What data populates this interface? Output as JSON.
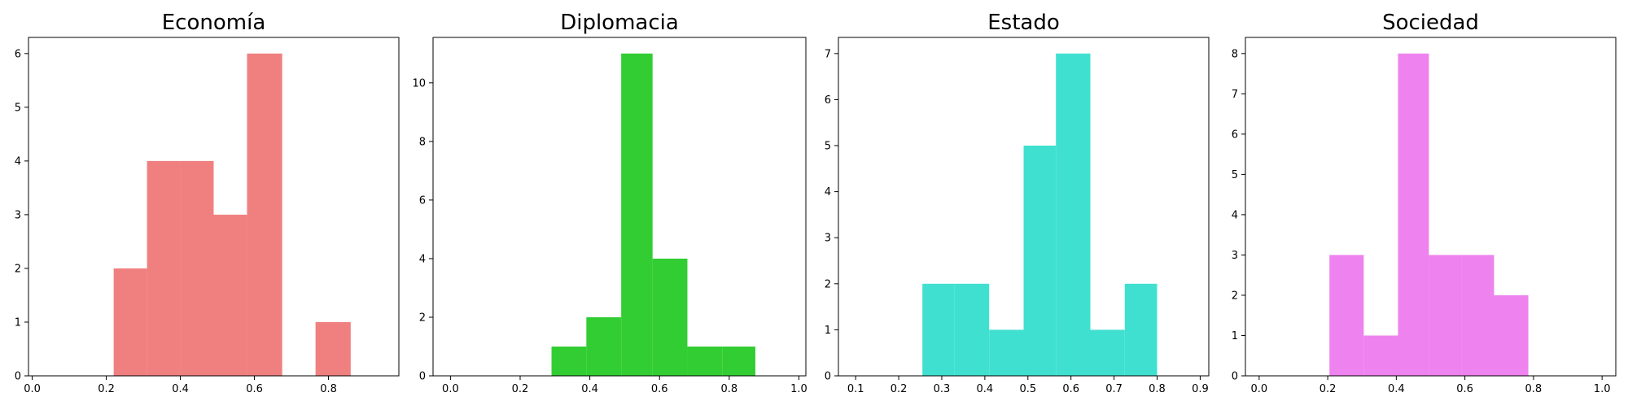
{
  "chart_data": [
    {
      "type": "bar",
      "title": "Economía",
      "color": "#F08080",
      "bins": [
        {
          "x0": 0.22,
          "x1": 0.31,
          "count": 2
        },
        {
          "x0": 0.31,
          "x1": 0.4,
          "count": 4
        },
        {
          "x0": 0.4,
          "x1": 0.49,
          "count": 4
        },
        {
          "x0": 0.49,
          "x1": 0.58,
          "count": 3
        },
        {
          "x0": 0.58,
          "x1": 0.675,
          "count": 6
        },
        {
          "x0": 0.675,
          "x1": 0.765,
          "count": 0
        },
        {
          "x0": 0.765,
          "x1": 0.86,
          "count": 1
        }
      ],
      "xlim": [
        -0.01,
        0.99
      ],
      "ylim": [
        0,
        6.3
      ],
      "xticks": [
        0.0,
        0.2,
        0.4,
        0.6,
        0.8
      ],
      "xtick_labels": [
        "0.0",
        "0.2",
        "0.4",
        "0.6",
        "0.8"
      ],
      "yticks": [
        0,
        1,
        2,
        3,
        4,
        5,
        6
      ],
      "ytick_labels": [
        "0",
        "1",
        "2",
        "3",
        "4",
        "5",
        "6"
      ],
      "xlabel": "",
      "ylabel": ""
    },
    {
      "type": "bar",
      "title": "Diplomacia",
      "color": "#32CD32",
      "bins": [
        {
          "x0": 0.29,
          "x1": 0.39,
          "count": 1
        },
        {
          "x0": 0.39,
          "x1": 0.49,
          "count": 2
        },
        {
          "x0": 0.49,
          "x1": 0.58,
          "count": 11
        },
        {
          "x0": 0.58,
          "x1": 0.68,
          "count": 4
        },
        {
          "x0": 0.68,
          "x1": 0.78,
          "count": 1
        },
        {
          "x0": 0.78,
          "x1": 0.875,
          "count": 1
        }
      ],
      "xlim": [
        -0.05,
        1.02
      ],
      "ylim": [
        0,
        11.55
      ],
      "xticks": [
        0.0,
        0.2,
        0.4,
        0.6,
        0.8,
        1.0
      ],
      "xtick_labels": [
        "0.0",
        "0.2",
        "0.4",
        "0.6",
        "0.8",
        "1.0"
      ],
      "yticks": [
        0,
        2,
        4,
        6,
        8,
        10
      ],
      "ytick_labels": [
        "0",
        "2",
        "4",
        "6",
        "8",
        "10"
      ],
      "xlabel": "",
      "ylabel": ""
    },
    {
      "type": "bar",
      "title": "Estado",
      "color": "#40E0D0",
      "bins": [
        {
          "x0": 0.255,
          "x1": 0.33,
          "count": 2
        },
        {
          "x0": 0.33,
          "x1": 0.41,
          "count": 2
        },
        {
          "x0": 0.41,
          "x1": 0.49,
          "count": 1
        },
        {
          "x0": 0.49,
          "x1": 0.565,
          "count": 5
        },
        {
          "x0": 0.565,
          "x1": 0.645,
          "count": 7
        },
        {
          "x0": 0.645,
          "x1": 0.725,
          "count": 1
        },
        {
          "x0": 0.725,
          "x1": 0.8,
          "count": 2
        }
      ],
      "xlim": [
        0.06,
        0.92
      ],
      "ylim": [
        0,
        7.35
      ],
      "xticks": [
        0.1,
        0.2,
        0.3,
        0.4,
        0.5,
        0.6,
        0.7,
        0.8,
        0.9
      ],
      "xtick_labels": [
        "0.1",
        "0.2",
        "0.3",
        "0.4",
        "0.5",
        "0.6",
        "0.7",
        "0.8",
        "0.9"
      ],
      "yticks": [
        0,
        1,
        2,
        3,
        4,
        5,
        6,
        7
      ],
      "ytick_labels": [
        "0",
        "1",
        "2",
        "3",
        "4",
        "5",
        "6",
        "7"
      ],
      "xlabel": "",
      "ylabel": ""
    },
    {
      "type": "bar",
      "title": "Sociedad",
      "color": "#EE82EE",
      "bins": [
        {
          "x0": 0.205,
          "x1": 0.305,
          "count": 3
        },
        {
          "x0": 0.305,
          "x1": 0.405,
          "count": 1
        },
        {
          "x0": 0.405,
          "x1": 0.495,
          "count": 8
        },
        {
          "x0": 0.495,
          "x1": 0.59,
          "count": 3
        },
        {
          "x0": 0.59,
          "x1": 0.685,
          "count": 3
        },
        {
          "x0": 0.685,
          "x1": 0.785,
          "count": 2
        }
      ],
      "xlim": [
        -0.04,
        1.04
      ],
      "ylim": [
        0,
        8.4
      ],
      "xticks": [
        0.0,
        0.2,
        0.4,
        0.6,
        0.8,
        1.0
      ],
      "xtick_labels": [
        "0.0",
        "0.2",
        "0.4",
        "0.6",
        "0.8",
        "1.0"
      ],
      "yticks": [
        0,
        1,
        2,
        3,
        4,
        5,
        6,
        7,
        8
      ],
      "ytick_labels": [
        "0",
        "1",
        "2",
        "3",
        "4",
        "5",
        "6",
        "7",
        "8"
      ],
      "xlabel": "",
      "ylabel": ""
    }
  ]
}
